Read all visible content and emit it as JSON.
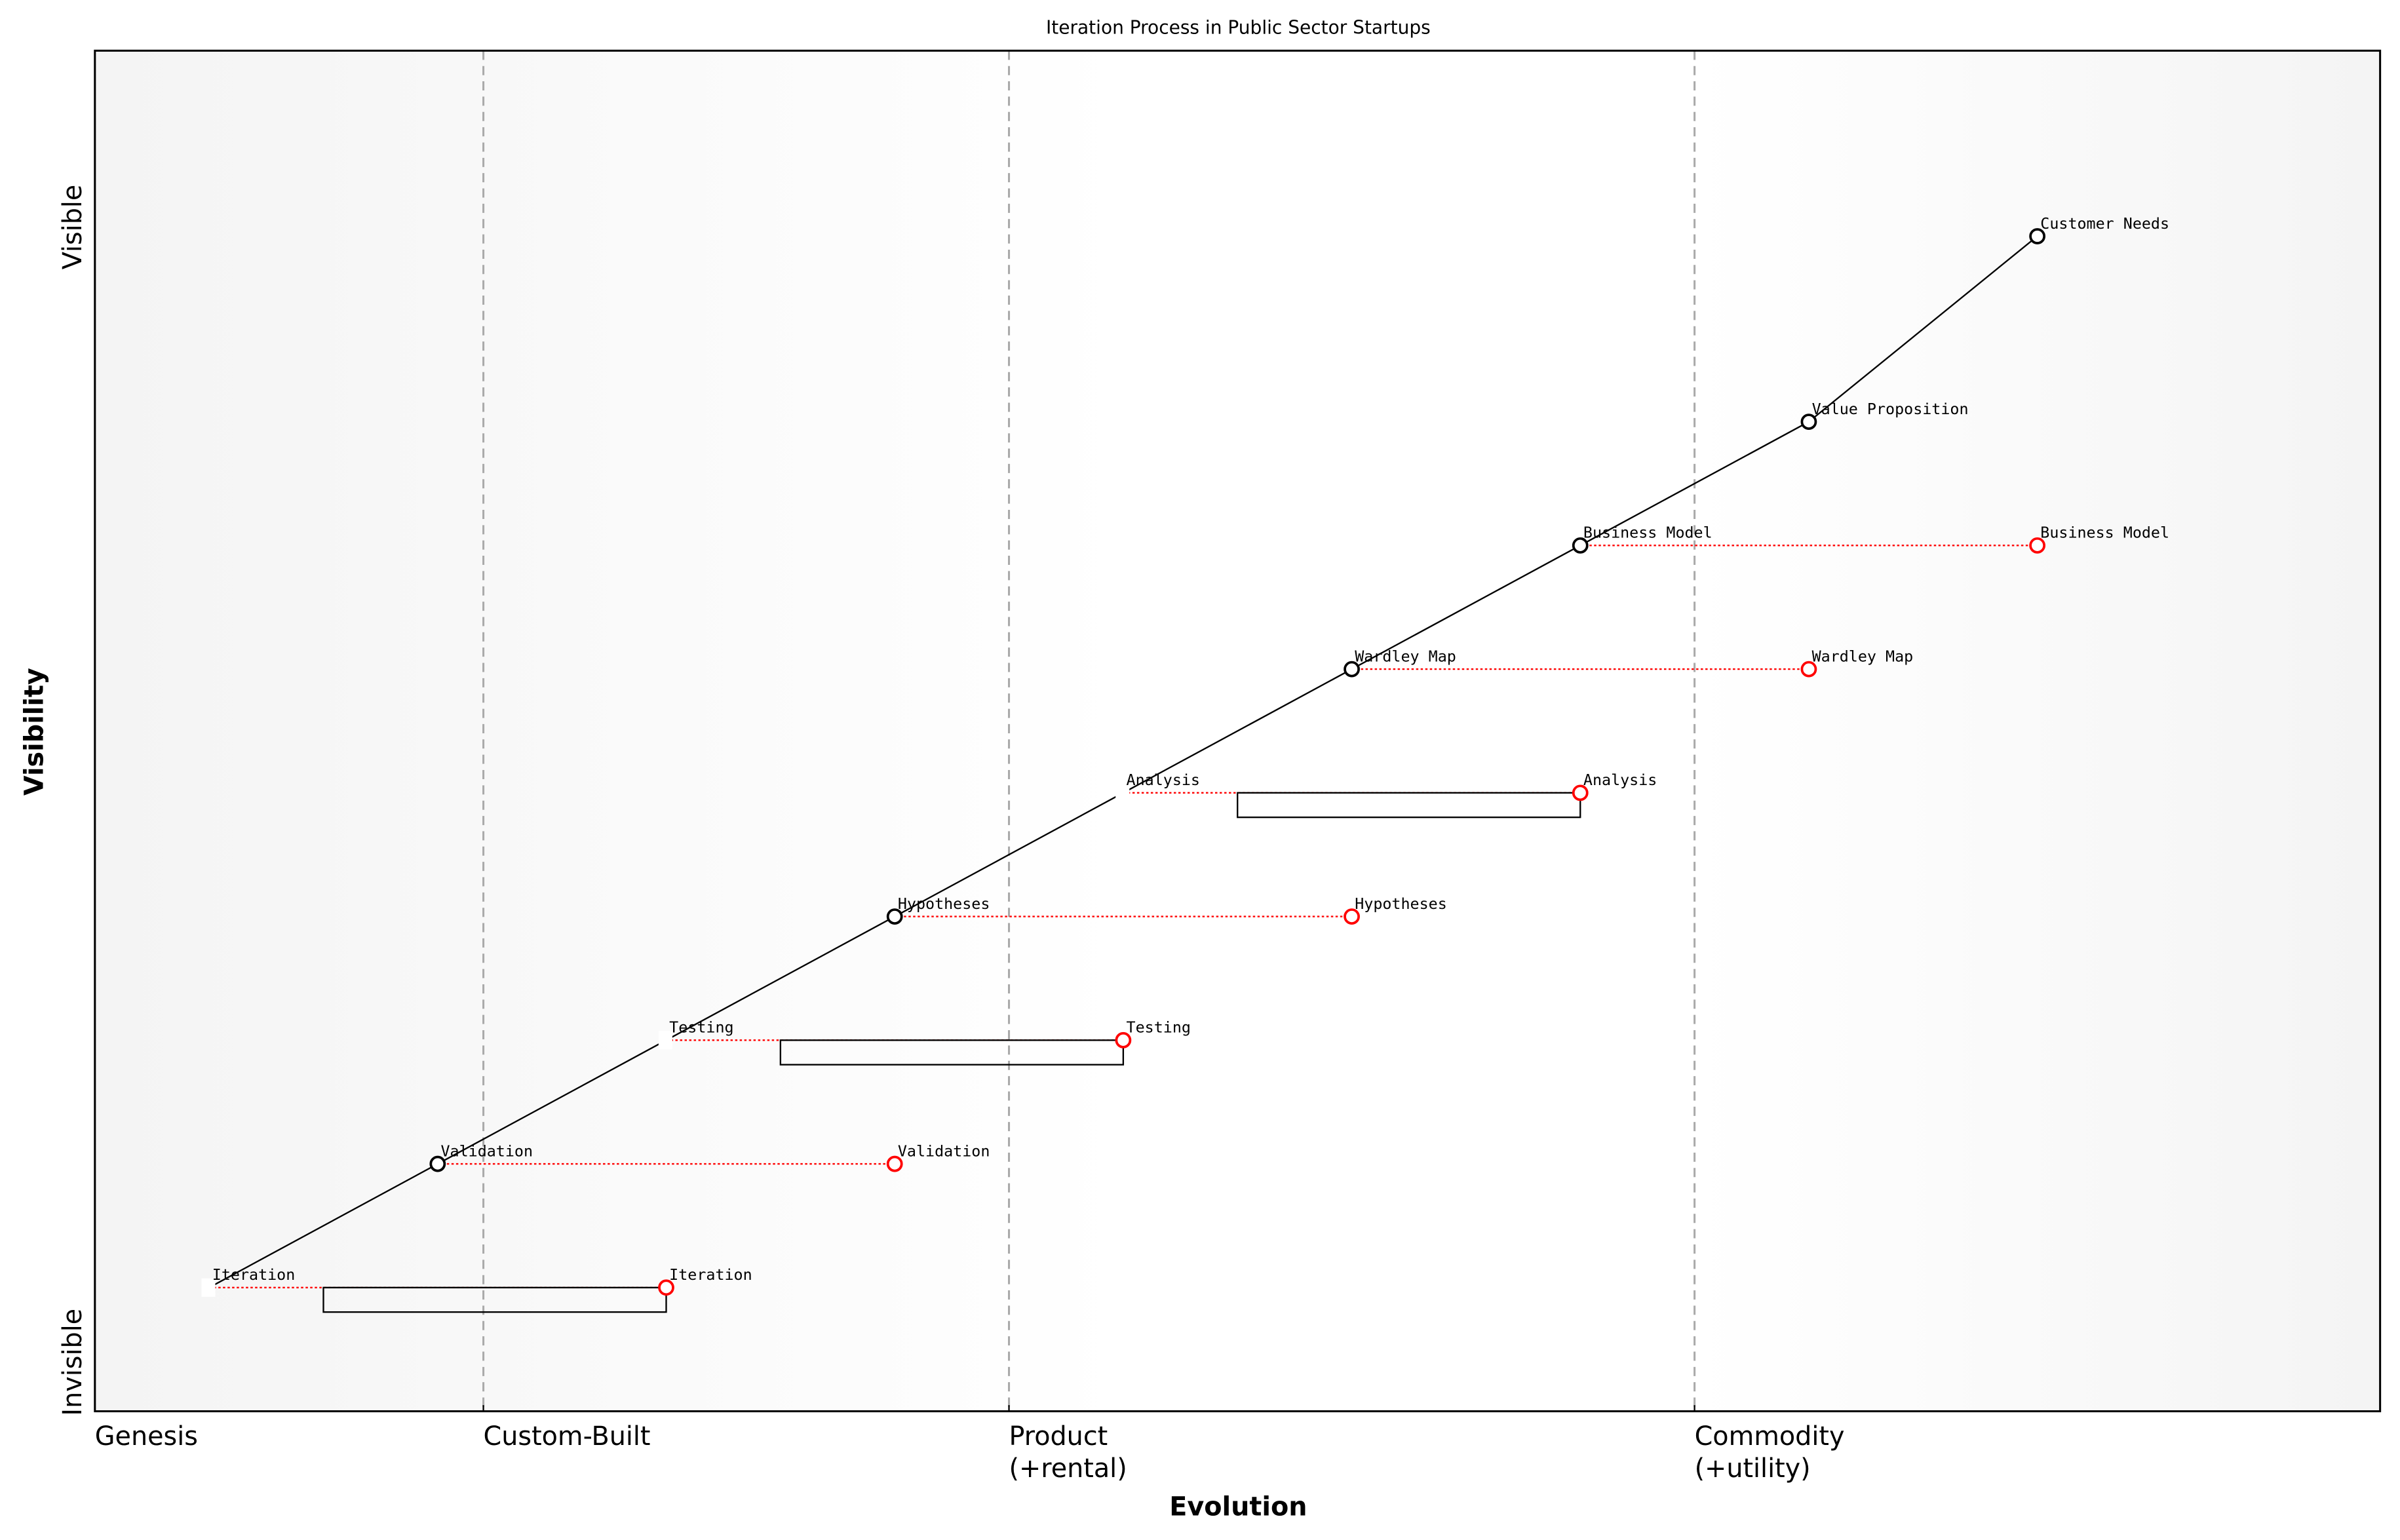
{
  "chart_data": {
    "type": "scatter",
    "subtype": "wardley-map",
    "title": "Iteration Process in Public Sector Startups",
    "xlabel": "Evolution",
    "ylabel": "Visibility",
    "xlim": [
      0,
      1
    ],
    "ylim": [
      0,
      1.1
    ],
    "grid": false,
    "y_end_labels": {
      "low": "Invisible",
      "high": "Visible"
    },
    "stages": [
      {
        "label": "Genesis",
        "x": 0
      },
      {
        "label": "Custom-Built",
        "x": 0.17
      },
      {
        "label": "Product\n(+rental)",
        "x": 0.4
      },
      {
        "label": "Commodity\n(+utility)",
        "x": 0.7
      }
    ],
    "components": [
      {
        "name": "Customer Needs",
        "x": 0.85,
        "y": 0.95,
        "marker": true
      },
      {
        "name": "Value Proposition",
        "x": 0.75,
        "y": 0.8,
        "marker": true
      },
      {
        "name": "Business Model",
        "x": 0.65,
        "y": 0.7,
        "marker": true,
        "evolve_to": 0.85
      },
      {
        "name": "Wardley Map",
        "x": 0.55,
        "y": 0.6,
        "marker": true,
        "evolve_to": 0.75
      },
      {
        "name": "Analysis",
        "x": 0.45,
        "y": 0.5,
        "marker": false,
        "evolve_to": 0.65,
        "inertia": [
          0.5,
          0.65
        ]
      },
      {
        "name": "Hypotheses",
        "x": 0.35,
        "y": 0.4,
        "marker": true,
        "evolve_to": 0.55
      },
      {
        "name": "Testing",
        "x": 0.25,
        "y": 0.3,
        "marker": false,
        "evolve_to": 0.45,
        "inertia": [
          0.3,
          0.45
        ]
      },
      {
        "name": "Validation",
        "x": 0.15,
        "y": 0.2,
        "marker": true,
        "evolve_to": 0.35
      },
      {
        "name": "Iteration",
        "x": 0.05,
        "y": 0.1,
        "marker": false,
        "evolve_to": 0.25,
        "inertia": [
          0.1,
          0.25
        ]
      }
    ],
    "links": [
      [
        "Iteration",
        "Validation"
      ],
      [
        "Validation",
        "Testing"
      ],
      [
        "Testing",
        "Hypotheses"
      ],
      [
        "Hypotheses",
        "Analysis"
      ],
      [
        "Analysis",
        "Wardley Map"
      ],
      [
        "Wardley Map",
        "Business Model"
      ],
      [
        "Business Model",
        "Value Proposition"
      ],
      [
        "Value Proposition",
        "Customer Needs"
      ]
    ],
    "colors": {
      "component": "#000000",
      "evolve": "#ff0000",
      "stage_line": "#aaaaaa",
      "background_edge": "#f4f4f4",
      "background_mid": "#ffffff"
    }
  }
}
